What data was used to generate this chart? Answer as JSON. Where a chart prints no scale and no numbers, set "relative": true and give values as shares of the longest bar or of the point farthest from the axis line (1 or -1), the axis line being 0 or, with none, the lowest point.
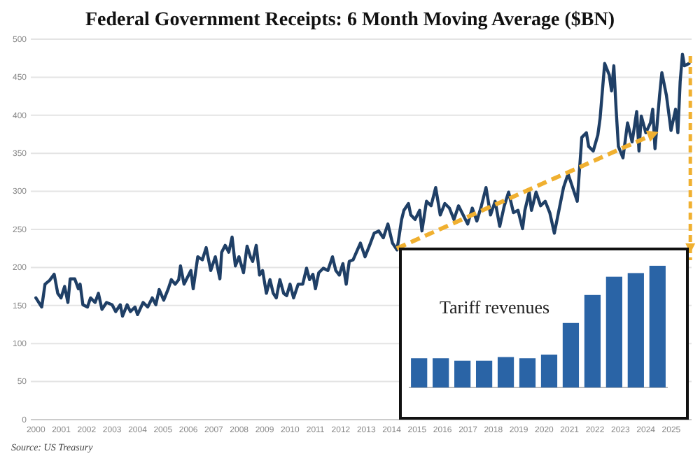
{
  "chart_data": [
    {
      "type": "line",
      "title": "Federal Government Receipts: 6 Month Moving Average ($BN)",
      "annotations": [
        "Source: US Treasury"
      ],
      "grid": "y",
      "xlim": [
        1999.8,
        2025.8
      ],
      "ylim": [
        0,
        500
      ],
      "yticks": [
        0,
        50,
        100,
        150,
        200,
        250,
        300,
        350,
        400,
        450,
        500
      ],
      "xticks": [
        2000,
        2001,
        2002,
        2003,
        2004,
        2005,
        2006,
        2007,
        2008,
        2009,
        2010,
        2011,
        2012,
        2013,
        2014,
        2015,
        2016,
        2017,
        2018,
        2019,
        2020,
        2021,
        2022,
        2023,
        2024,
        2025
      ],
      "series": [
        {
          "color": "#1f3f66",
          "x": [
            2000.0,
            2000.23,
            2000.36,
            2000.54,
            2000.72,
            2000.86,
            2000.99,
            2001.13,
            2001.26,
            2001.35,
            2001.53,
            2001.67,
            2001.74,
            2001.85,
            2002.03,
            2002.15,
            2002.33,
            2002.46,
            2002.6,
            2002.78,
            2003.0,
            2003.14,
            2003.32,
            2003.41,
            2003.59,
            2003.72,
            2003.9,
            2004.0,
            2004.22,
            2004.4,
            2004.58,
            2004.72,
            2004.85,
            2005.03,
            2005.21,
            2005.33,
            2005.48,
            2005.62,
            2005.69,
            2005.83,
            2006.1,
            2006.19,
            2006.37,
            2006.55,
            2006.7,
            2006.88,
            2007.06,
            2007.24,
            2007.31,
            2007.45,
            2007.59,
            2007.72,
            2007.85,
            2007.99,
            2008.17,
            2008.31,
            2008.44,
            2008.53,
            2008.67,
            2008.8,
            2008.92,
            2009.07,
            2009.21,
            2009.34,
            2009.46,
            2009.6,
            2009.75,
            2009.87,
            2010.0,
            2010.14,
            2010.32,
            2010.5,
            2010.65,
            2010.77,
            2010.9,
            2011.0,
            2011.13,
            2011.31,
            2011.49,
            2011.67,
            2011.8,
            2011.94,
            2012.08,
            2012.21,
            2012.33,
            2012.48,
            2012.77,
            2012.95,
            2013.13,
            2013.31,
            2013.49,
            2013.67,
            2013.85,
            2014.03,
            2014.21,
            2014.39,
            2014.48,
            2014.66,
            2014.75,
            2014.92,
            2015.1,
            2015.19,
            2015.37,
            2015.55,
            2015.73,
            2015.91,
            2016.09,
            2016.27,
            2016.45,
            2016.63,
            2016.81,
            2016.99,
            2017.17,
            2017.35,
            2017.53,
            2017.71,
            2017.89,
            2018.07,
            2018.25,
            2018.43,
            2018.6,
            2018.79,
            2018.97,
            2019.15,
            2019.24,
            2019.41,
            2019.5,
            2019.68,
            2019.86,
            2020.04,
            2020.22,
            2020.4,
            2020.58,
            2020.76,
            2020.94,
            2021.12,
            2021.3,
            2021.39,
            2021.48,
            2021.66,
            2021.75,
            2021.93,
            2022.11,
            2022.2,
            2022.38,
            2022.56,
            2022.65,
            2022.74,
            2022.83,
            2022.92,
            2023.1,
            2023.28,
            2023.46,
            2023.64,
            2023.73,
            2023.82,
            2024.0,
            2024.18,
            2024.27,
            2024.36,
            2024.54,
            2024.63,
            2024.81,
            2024.99,
            2025.17,
            2025.26,
            2025.35,
            2025.44,
            2025.52,
            2025.7
          ],
          "values": [
            160,
            148,
            178,
            183,
            191,
            166,
            160,
            175,
            154,
            185,
            185,
            172,
            178,
            151,
            148,
            160,
            154,
            166,
            145,
            154,
            151,
            142,
            151,
            136,
            151,
            142,
            148,
            138,
            154,
            148,
            160,
            151,
            171,
            157,
            172,
            184,
            178,
            184,
            202,
            178,
            196,
            172,
            214,
            210,
            226,
            196,
            214,
            185,
            220,
            229,
            220,
            240,
            202,
            214,
            193,
            228,
            214,
            208,
            229,
            190,
            196,
            166,
            184,
            166,
            160,
            184,
            166,
            163,
            178,
            160,
            178,
            178,
            199,
            184,
            191,
            172,
            193,
            199,
            196,
            214,
            196,
            190,
            205,
            178,
            208,
            210,
            232,
            214,
            229,
            245,
            248,
            239,
            257,
            232,
            223,
            263,
            275,
            284,
            269,
            263,
            275,
            248,
            287,
            281,
            305,
            269,
            284,
            278,
            263,
            281,
            269,
            257,
            278,
            261,
            281,
            305,
            269,
            287,
            254,
            281,
            299,
            272,
            275,
            251,
            275,
            299,
            275,
            299,
            281,
            287,
            272,
            245,
            275,
            305,
            323,
            305,
            287,
            329,
            371,
            377,
            359,
            353,
            374,
            396,
            468,
            453,
            432,
            465,
            408,
            359,
            344,
            390,
            365,
            405,
            353,
            399,
            377,
            390,
            408,
            356,
            426,
            456,
            426,
            380,
            408,
            377,
            444,
            480,
            465,
            468
          ]
        }
      ]
    },
    {
      "type": "bar",
      "title": "Tariff revenues",
      "relative": true,
      "categories": [
        null,
        null,
        null,
        null,
        null,
        null,
        null,
        null,
        null,
        null,
        null,
        null
      ],
      "color": "#2a64a6",
      "values": [
        0.24,
        0.24,
        0.22,
        0.22,
        0.25,
        0.24,
        0.27,
        0.53,
        0.76,
        0.91,
        0.94,
        1.0
      ]
    }
  ]
}
